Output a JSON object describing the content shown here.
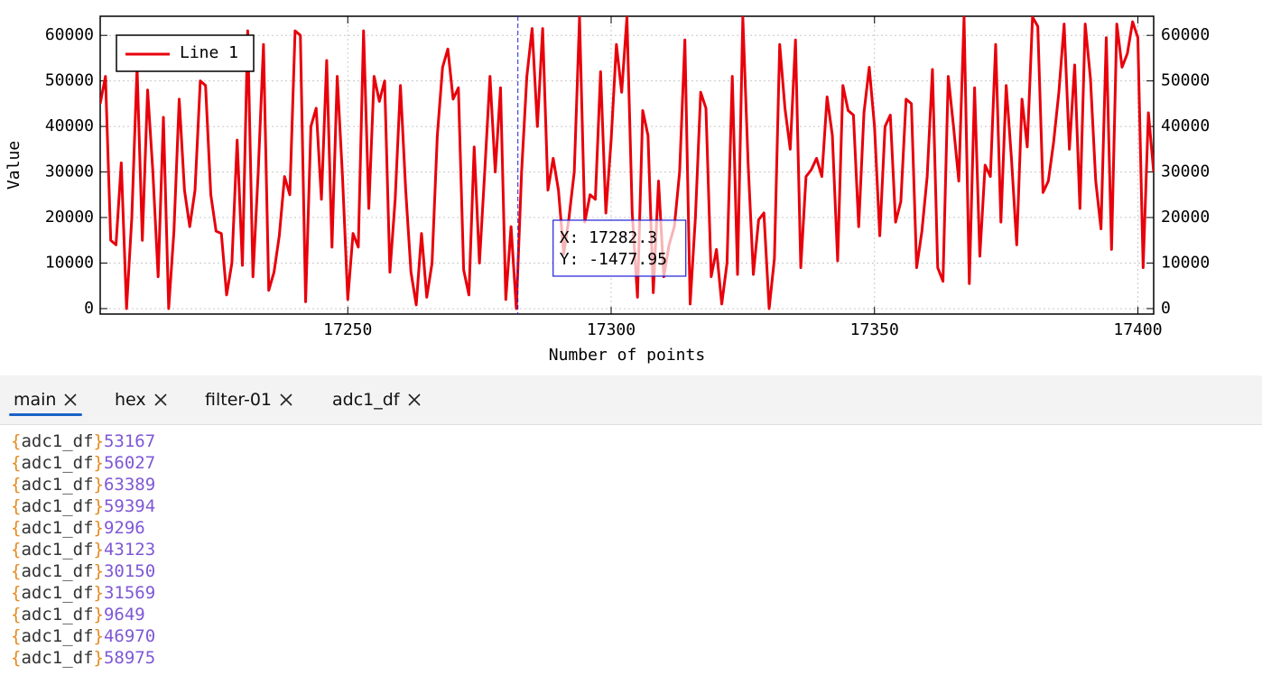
{
  "chart_data": {
    "type": "line",
    "xlabel": "Number of points",
    "ylabel": "Value",
    "xlim": [
      17203,
      17403
    ],
    "ylim": [
      -1200,
      64200
    ],
    "xticks": [
      17250,
      17300,
      17350,
      17400
    ],
    "yticks": [
      0,
      10000,
      20000,
      30000,
      40000,
      50000,
      60000
    ],
    "grid": true,
    "legend": "upper-left",
    "right_axis": true,
    "x": [
      17203,
      17204,
      17205,
      17206,
      17207,
      17208,
      17209,
      17210,
      17211,
      17212,
      17213,
      17214,
      17215,
      17216,
      17217,
      17218,
      17219,
      17220,
      17221,
      17222,
      17223,
      17224,
      17225,
      17226,
      17227,
      17228,
      17229,
      17230,
      17231,
      17232,
      17233,
      17234,
      17235,
      17236,
      17237,
      17238,
      17239,
      17240,
      17241,
      17242,
      17243,
      17244,
      17245,
      17246,
      17247,
      17248,
      17249,
      17250,
      17251,
      17252,
      17253,
      17254,
      17255,
      17256,
      17257,
      17258,
      17259,
      17260,
      17261,
      17262,
      17263,
      17264,
      17265,
      17266,
      17267,
      17268,
      17269,
      17270,
      17271,
      17272,
      17273,
      17274,
      17275,
      17276,
      17277,
      17278,
      17279,
      17280,
      17281,
      17282,
      17283,
      17284,
      17285,
      17286,
      17287,
      17288,
      17289,
      17290,
      17291,
      17292,
      17293,
      17294,
      17295,
      17296,
      17297,
      17298,
      17299,
      17300,
      17301,
      17302,
      17303,
      17304,
      17305,
      17306,
      17307,
      17308,
      17309,
      17310,
      17311,
      17312,
      17313,
      17314,
      17315,
      17316,
      17317,
      17318,
      17319,
      17320,
      17321,
      17322,
      17323,
      17324,
      17325,
      17326,
      17327,
      17328,
      17329,
      17330,
      17331,
      17332,
      17333,
      17334,
      17335,
      17336,
      17337,
      17338,
      17339,
      17340,
      17341,
      17342,
      17343,
      17344,
      17345,
      17346,
      17347,
      17348,
      17349,
      17350,
      17351,
      17352,
      17353,
      17354,
      17355,
      17356,
      17357,
      17358,
      17359,
      17360,
      17361,
      17362,
      17363,
      17364,
      17365,
      17366,
      17367,
      17368,
      17369,
      17370,
      17371,
      17372,
      17373,
      17374,
      17375,
      17376,
      17377,
      17378,
      17379,
      17380,
      17381,
      17382,
      17383,
      17384,
      17385,
      17386,
      17387,
      17388,
      17389,
      17390,
      17391,
      17392,
      17393,
      17394,
      17395,
      17396,
      17397,
      17398,
      17399,
      17400,
      17401,
      17402,
      17403
    ],
    "series": [
      {
        "name": "Line 1",
        "color": "#e8000b",
        "values": [
          45000,
          51000,
          15000,
          14000,
          32000,
          0,
          20000,
          53000,
          15000,
          48000,
          30000,
          7000,
          42000,
          0,
          17000,
          46000,
          26000,
          18000,
          26000,
          50000,
          49000,
          25000,
          17000,
          16500,
          3000,
          10000,
          37000,
          9500,
          61000,
          7000,
          30000,
          58000,
          4000,
          8000,
          16000,
          29000,
          25000,
          61000,
          60000,
          1500,
          40000,
          44000,
          24000,
          54500,
          13500,
          51000,
          29000,
          2000,
          16500,
          13500,
          61000,
          22000,
          51000,
          45500,
          50000,
          8000,
          24000,
          49000,
          26000,
          8000,
          800,
          16500,
          2500,
          10000,
          38000,
          53000,
          57000,
          46000,
          48500,
          8500,
          3000,
          35500,
          10000,
          30000,
          51000,
          30000,
          48500,
          2000,
          18000,
          0,
          30000,
          51000,
          61500,
          40000,
          61500,
          26000,
          33000,
          26000,
          12000,
          20000,
          30000,
          64000,
          19000,
          25000,
          24000,
          52000,
          21000,
          37000,
          58000,
          47500,
          64000,
          21000,
          2500,
          43500,
          38000,
          3500,
          28000,
          7000,
          14000,
          18000,
          30000,
          59000,
          1000,
          20000,
          47500,
          44000,
          7000,
          13000,
          1000,
          10000,
          51000,
          7500,
          64000,
          32000,
          7500,
          19500,
          21000,
          0,
          11000,
          58000,
          44000,
          35000,
          59000,
          9000,
          29000,
          30500,
          33000,
          29000,
          46500,
          38000,
          10500,
          49000,
          43500,
          42500,
          18000,
          43000,
          53000,
          40000,
          16000,
          40000,
          42500,
          19000,
          23500,
          46000,
          45000,
          9000,
          17000,
          29000,
          52500,
          9000,
          6000,
          51000,
          40000,
          28000,
          64000,
          5500,
          48500,
          11500,
          31500,
          29000,
          58000,
          19000,
          49000,
          33000,
          14000,
          46000,
          35500,
          64000,
          62000,
          25500,
          28000,
          36500,
          47500,
          62500,
          35000,
          53500,
          22000,
          62500,
          50500,
          28000,
          17500,
          59500,
          13000,
          62500,
          53000,
          56000,
          63000,
          59500,
          9000,
          43000,
          30000
        ]
      }
    ],
    "cursor": {
      "x": {
        "value": 17282.3,
        "label": "X: 17282.3"
      },
      "y": {
        "value": -1477.95,
        "label": "Y: -1477.95"
      }
    }
  },
  "tabs": [
    "main",
    "hex",
    "filter-01",
    "adc1_df"
  ],
  "active_tab": 0,
  "log": {
    "brackets": [
      "{",
      "}"
    ],
    "lines": [
      {
        "tag": "adc1_df",
        "value": 53167
      },
      {
        "tag": "adc1_df",
        "value": 56027
      },
      {
        "tag": "adc1_df",
        "value": 63389
      },
      {
        "tag": "adc1_df",
        "value": 59394
      },
      {
        "tag": "adc1_df",
        "value": 9296
      },
      {
        "tag": "adc1_df",
        "value": 43123
      },
      {
        "tag": "adc1_df",
        "value": 30150
      },
      {
        "tag": "adc1_df",
        "value": 31569
      },
      {
        "tag": "adc1_df",
        "value": 9649
      },
      {
        "tag": "adc1_df",
        "value": 46970
      },
      {
        "tag": "adc1_df",
        "value": 58975
      }
    ]
  }
}
